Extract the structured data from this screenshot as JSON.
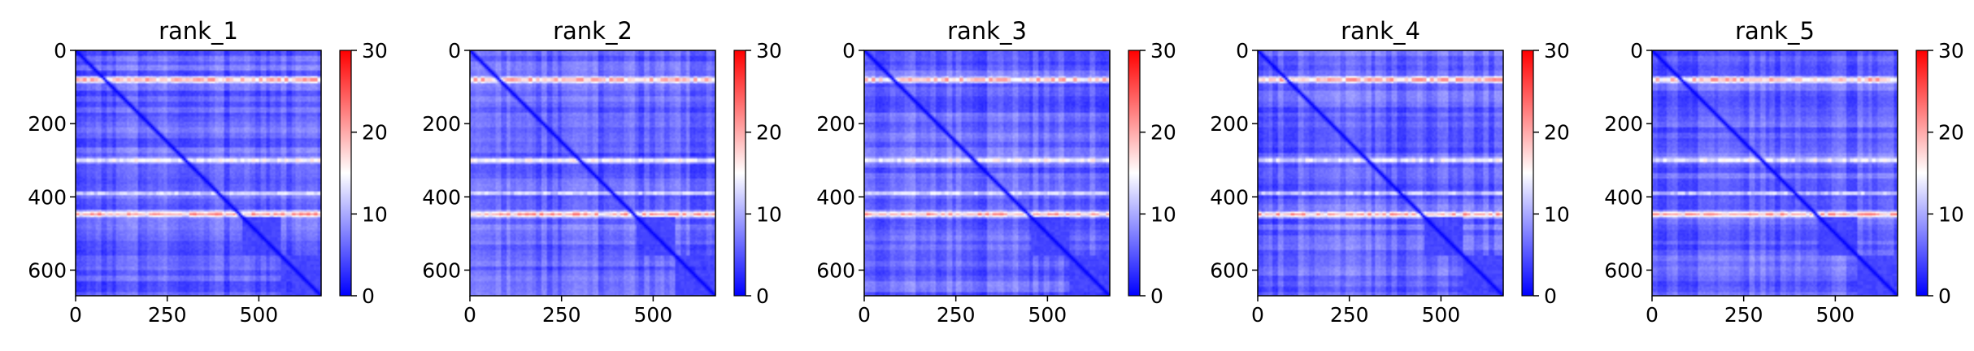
{
  "figure": {
    "colormap": "bwr",
    "colormap_stops": [
      "#0000ff",
      "#ffffff",
      "#ff0000"
    ]
  },
  "chart_data": [
    {
      "type": "heatmap",
      "title": "rank_1",
      "xlabel": "",
      "ylabel": "",
      "xlim": [
        0,
        670
      ],
      "ylim": [
        670,
        0
      ],
      "xticks": [
        "0",
        "250",
        "500"
      ],
      "yticks": [
        "0",
        "200",
        "400",
        "600"
      ],
      "colorbar": {
        "range": [
          0,
          30
        ],
        "ticks": [
          "0",
          "10",
          "20",
          "30"
        ]
      },
      "diagonal_value": 0,
      "background_value": 6,
      "high_rows": [
        {
          "center": 80,
          "half_width": 12,
          "value": 26
        },
        {
          "center": 300,
          "half_width": 10,
          "value": 20
        },
        {
          "center": 390,
          "half_width": 8,
          "value": 18
        },
        {
          "center": 447,
          "half_width": 12,
          "value": 25
        }
      ],
      "blocks": [
        {
          "start": 455,
          "end": 560
        },
        {
          "start": 560,
          "end": 670
        }
      ]
    },
    {
      "type": "heatmap",
      "title": "rank_2",
      "xlabel": "",
      "ylabel": "",
      "xlim": [
        0,
        670
      ],
      "ylim": [
        670,
        0
      ],
      "xticks": [
        "0",
        "250",
        "500"
      ],
      "yticks": [
        "0",
        "200",
        "400",
        "600"
      ],
      "colorbar": {
        "range": [
          0,
          30
        ],
        "ticks": [
          "0",
          "10",
          "20",
          "30"
        ]
      },
      "diagonal_value": 0,
      "background_value": 6,
      "high_rows": [
        {
          "center": 80,
          "half_width": 12,
          "value": 26
        },
        {
          "center": 300,
          "half_width": 10,
          "value": 20
        },
        {
          "center": 390,
          "half_width": 8,
          "value": 18
        },
        {
          "center": 447,
          "half_width": 12,
          "value": 25
        }
      ],
      "blocks": [
        {
          "start": 455,
          "end": 560
        },
        {
          "start": 560,
          "end": 670
        }
      ]
    },
    {
      "type": "heatmap",
      "title": "rank_3",
      "xlabel": "",
      "ylabel": "",
      "xlim": [
        0,
        670
      ],
      "ylim": [
        670,
        0
      ],
      "xticks": [
        "0",
        "250",
        "500"
      ],
      "yticks": [
        "0",
        "200",
        "400",
        "600"
      ],
      "colorbar": {
        "range": [
          0,
          30
        ],
        "ticks": [
          "0",
          "10",
          "20",
          "30"
        ]
      },
      "diagonal_value": 0,
      "background_value": 6,
      "high_rows": [
        {
          "center": 80,
          "half_width": 12,
          "value": 26
        },
        {
          "center": 300,
          "half_width": 10,
          "value": 20
        },
        {
          "center": 390,
          "half_width": 8,
          "value": 18
        },
        {
          "center": 447,
          "half_width": 12,
          "value": 25
        }
      ],
      "blocks": [
        {
          "start": 455,
          "end": 560
        },
        {
          "start": 560,
          "end": 670
        }
      ]
    },
    {
      "type": "heatmap",
      "title": "rank_4",
      "xlabel": "",
      "ylabel": "",
      "xlim": [
        0,
        670
      ],
      "ylim": [
        670,
        0
      ],
      "xticks": [
        "0",
        "250",
        "500"
      ],
      "yticks": [
        "0",
        "200",
        "400",
        "600"
      ],
      "colorbar": {
        "range": [
          0,
          30
        ],
        "ticks": [
          "0",
          "10",
          "20",
          "30"
        ]
      },
      "diagonal_value": 0,
      "background_value": 6,
      "high_rows": [
        {
          "center": 80,
          "half_width": 12,
          "value": 26
        },
        {
          "center": 300,
          "half_width": 10,
          "value": 20
        },
        {
          "center": 390,
          "half_width": 8,
          "value": 18
        },
        {
          "center": 447,
          "half_width": 12,
          "value": 25
        }
      ],
      "blocks": [
        {
          "start": 455,
          "end": 560
        },
        {
          "start": 560,
          "end": 670
        }
      ]
    },
    {
      "type": "heatmap",
      "title": "rank_5",
      "xlabel": "",
      "ylabel": "",
      "xlim": [
        0,
        670
      ],
      "ylim": [
        670,
        0
      ],
      "xticks": [
        "0",
        "250",
        "500"
      ],
      "yticks": [
        "0",
        "200",
        "400",
        "600"
      ],
      "colorbar": {
        "range": [
          0,
          30
        ],
        "ticks": [
          "0",
          "10",
          "20",
          "30"
        ]
      },
      "diagonal_value": 0,
      "background_value": 6,
      "high_rows": [
        {
          "center": 80,
          "half_width": 12,
          "value": 26
        },
        {
          "center": 300,
          "half_width": 10,
          "value": 20
        },
        {
          "center": 390,
          "half_width": 8,
          "value": 18
        },
        {
          "center": 447,
          "half_width": 12,
          "value": 25
        }
      ],
      "blocks": [
        {
          "start": 455,
          "end": 560
        },
        {
          "start": 560,
          "end": 670
        }
      ]
    }
  ]
}
